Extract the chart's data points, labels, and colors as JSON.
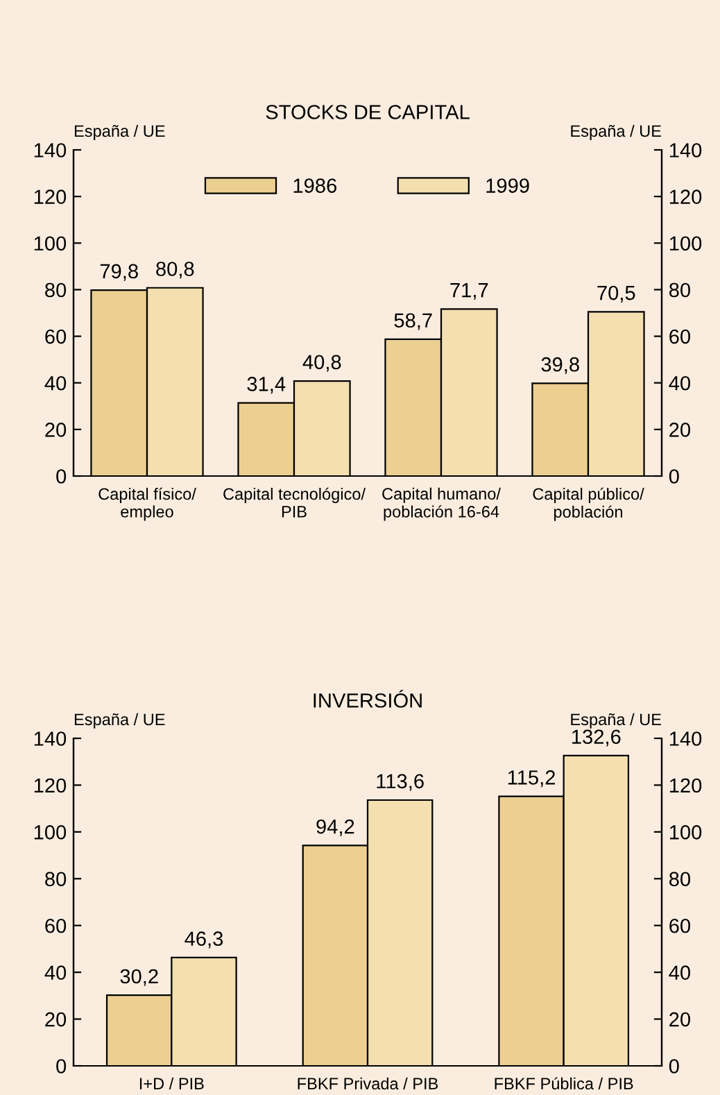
{
  "chart_data": [
    {
      "type": "bar",
      "title": "STOCKS DE CAPITAL",
      "ylabel": "España / UE",
      "y2label": "España / UE",
      "categories": [
        "Capital físico/\nempleo",
        "Capital tecnológico/\nPIB",
        "Capital humano/\npoblación 16-64",
        "Capital público/\npoblación"
      ],
      "series": [
        {
          "name": "1986",
          "color": "#ecd091",
          "values": [
            79.8,
            31.4,
            58.7,
            39.8
          ],
          "value_labels": [
            "79,8",
            "31,4",
            "58,7",
            "39,8"
          ]
        },
        {
          "name": "1999",
          "color": "#f3dfb0",
          "values": [
            80.8,
            40.8,
            71.7,
            70.5
          ],
          "value_labels": [
            "80,8",
            "40,8",
            "71,7",
            "70,5"
          ]
        }
      ],
      "ylim": [
        0,
        140
      ],
      "yticks": [
        0,
        20,
        40,
        60,
        80,
        100,
        120,
        140
      ],
      "y2lim": [
        0,
        140
      ],
      "y2ticks": [
        0,
        20,
        40,
        60,
        80,
        100,
        120,
        140
      ],
      "legend": "top",
      "grid": false
    },
    {
      "type": "bar",
      "title": "INVERSIÓN",
      "ylabel": "España / UE",
      "y2label": "España / UE",
      "categories": [
        "I+D / PIB",
        "FBKF Privada / PIB",
        "FBKF Pública / PIB"
      ],
      "series": [
        {
          "color": "#ecd091",
          "values": [
            30.2,
            94.2,
            115.2
          ],
          "value_labels": [
            "30,2",
            "94,2",
            "115,2"
          ]
        },
        {
          "color": "#f3dfb0",
          "values": [
            46.3,
            113.6,
            132.6
          ],
          "value_labels": [
            "46,3",
            "113,6",
            "132,6"
          ]
        }
      ],
      "ylim": [
        0,
        140
      ],
      "yticks": [
        0,
        20,
        40,
        60,
        80,
        100,
        120,
        140
      ],
      "y2lim": [
        0,
        140
      ],
      "y2ticks": [
        0,
        20,
        40,
        60,
        80,
        100,
        120,
        140
      ],
      "legend": false,
      "grid": false
    }
  ]
}
